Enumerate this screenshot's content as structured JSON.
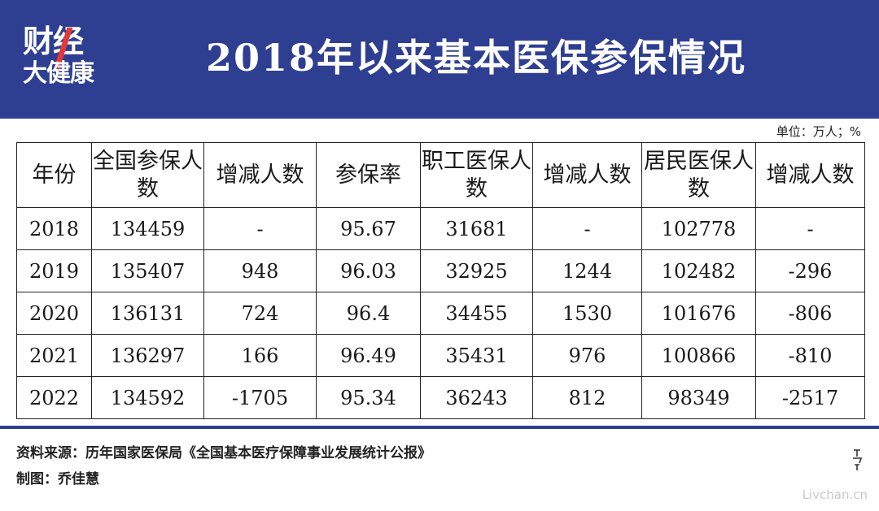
{
  "header": {
    "logo_top": "财经",
    "logo_bottom": "大健康",
    "title": "2018年以来基本医保参保情况"
  },
  "unit": "单位：万人；%",
  "table": {
    "columns": [
      "年份",
      "全国参保人数",
      "增减人数",
      "参保率",
      "职工医保人数",
      "增减人数",
      "居民医保人数",
      "增减人数"
    ],
    "rows": [
      [
        "2018",
        "134459",
        "-",
        "95.67",
        "31681",
        "-",
        "102778",
        "-"
      ],
      [
        "2019",
        "135407",
        "948",
        "96.03",
        "32925",
        "1244",
        "102482",
        "-296"
      ],
      [
        "2020",
        "136131",
        "724",
        "96.4",
        "34455",
        "1530",
        "101676",
        "-806"
      ],
      [
        "2021",
        "136297",
        "166",
        "96.49",
        "35431",
        "976",
        "100866",
        "-810"
      ],
      [
        "2022",
        "134592",
        "-1705",
        "95.34",
        "36243",
        "812",
        "98349",
        "-2517"
      ]
    ]
  },
  "footer": {
    "source": "资料来源：历年国家医保局《全国基本医疗保障事业发展统计公报》",
    "author": "制图：乔佳慧"
  },
  "watermark": "Livchan.cn",
  "colors": {
    "header_bg": "#2e3f92",
    "logo_accent": "#e23a3a"
  }
}
